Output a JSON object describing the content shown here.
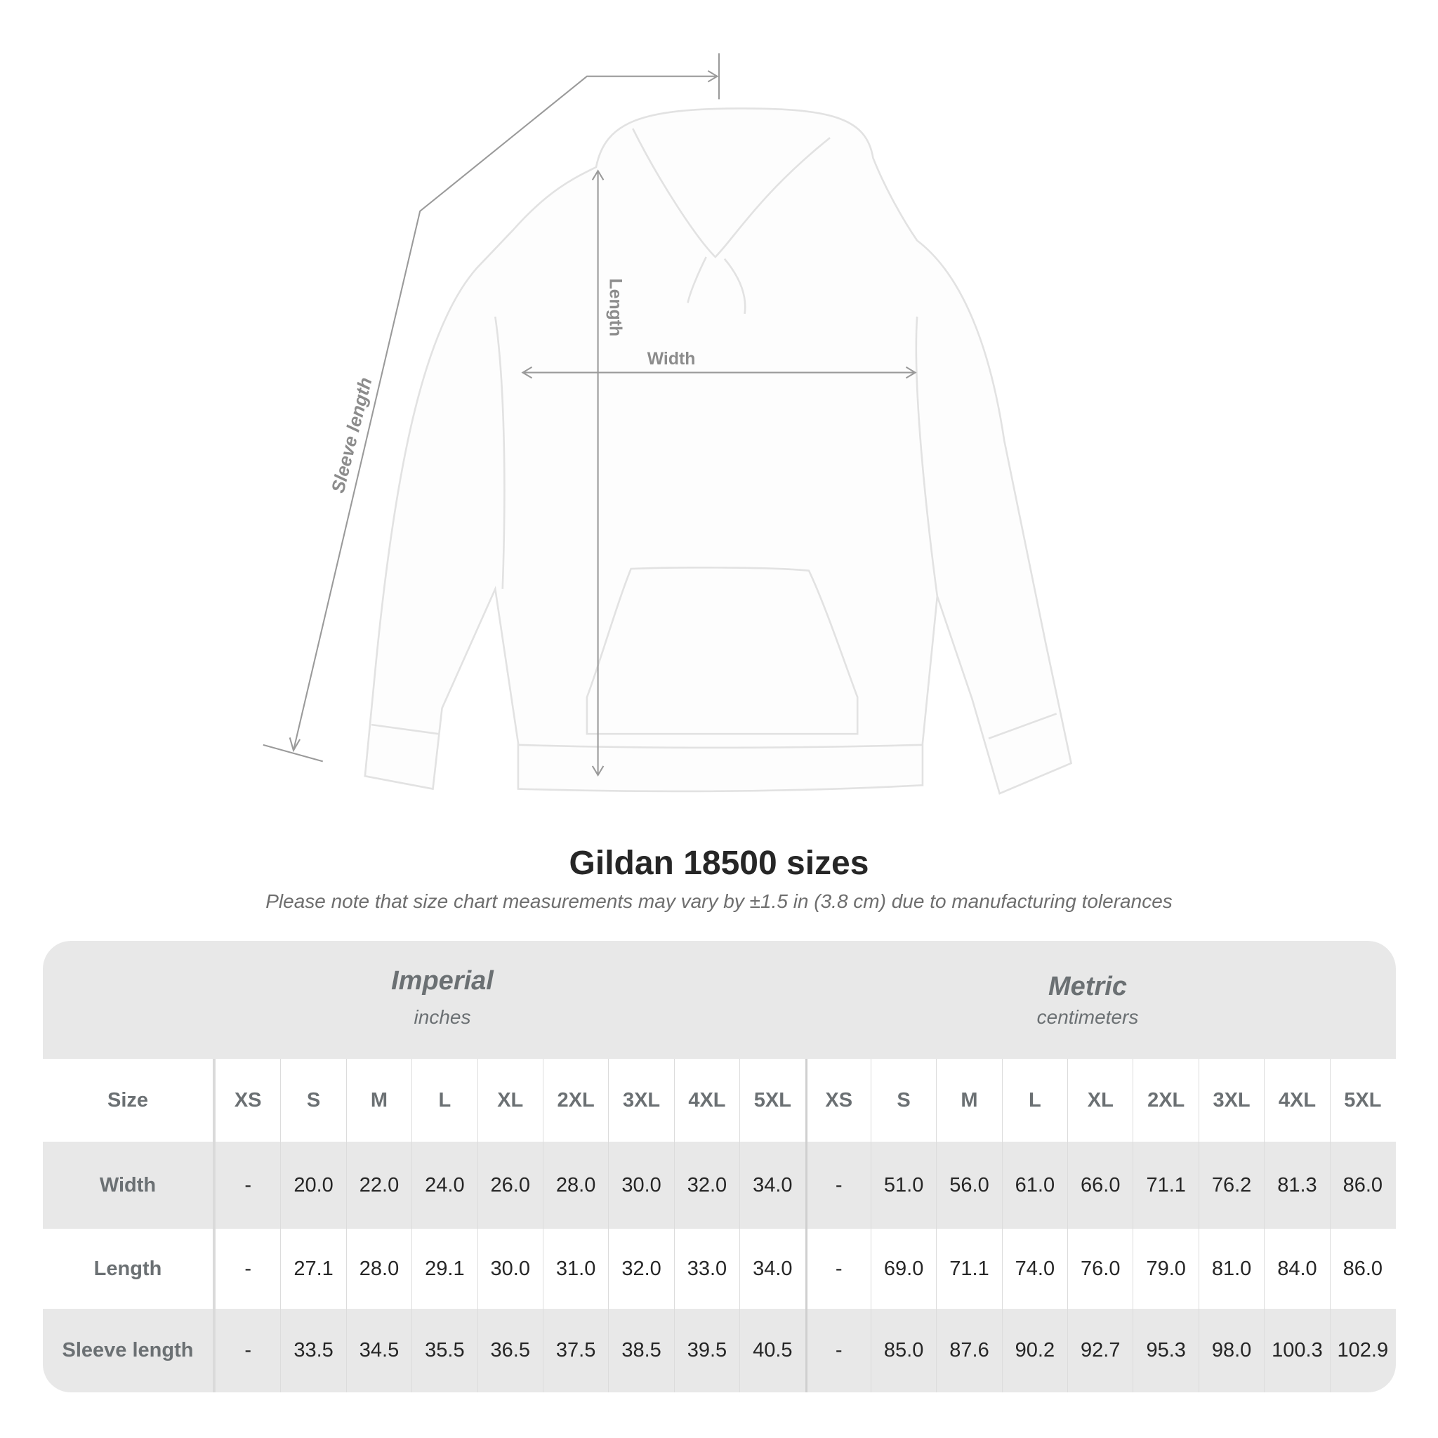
{
  "diagram": {
    "labels": {
      "length": "Length",
      "width": "Width",
      "sleeve_length": "Sleeve length"
    },
    "colors": {
      "measure_line": "#9a9a9a",
      "label": "#8c8c8c"
    }
  },
  "title": "Gildan 18500 sizes",
  "subtitle": "Please note that size chart measurements may vary by ±1.5 in (3.8 cm) due to manufacturing tolerances",
  "table": {
    "imperial": {
      "name": "Imperial",
      "unit": "inches"
    },
    "metric": {
      "name": "Metric",
      "unit": "centimeters"
    },
    "size_label": "Size",
    "sizes": [
      "XS",
      "S",
      "M",
      "L",
      "XL",
      "2XL",
      "3XL",
      "4XL",
      "5XL"
    ],
    "rows": [
      {
        "label": "Width",
        "imperial": [
          "-",
          "20.0",
          "22.0",
          "24.0",
          "26.0",
          "28.0",
          "30.0",
          "32.0",
          "34.0"
        ],
        "metric": [
          "-",
          "51.0",
          "56.0",
          "61.0",
          "66.0",
          "71.1",
          "76.2",
          "81.3",
          "86.0"
        ]
      },
      {
        "label": "Length",
        "imperial": [
          "-",
          "27.1",
          "28.0",
          "29.1",
          "30.0",
          "31.0",
          "32.0",
          "33.0",
          "34.0"
        ],
        "metric": [
          "-",
          "69.0",
          "71.1",
          "74.0",
          "76.0",
          "79.0",
          "81.0",
          "84.0",
          "86.0"
        ]
      },
      {
        "label": "Sleeve length",
        "imperial": [
          "-",
          "33.5",
          "34.5",
          "35.5",
          "36.5",
          "37.5",
          "38.5",
          "39.5",
          "40.5"
        ],
        "metric": [
          "-",
          "85.0",
          "87.6",
          "90.2",
          "92.7",
          "95.3",
          "98.0",
          "100.3",
          "102.9"
        ]
      }
    ],
    "colors": {
      "header_bg": "#e8e8e8",
      "header_text": "#6b7073",
      "value_text": "#262626"
    }
  }
}
